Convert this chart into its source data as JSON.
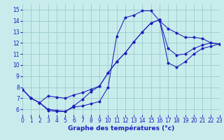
{
  "xlabel": "Graphe des températures (°c)",
  "xlim": [
    0,
    23
  ],
  "ylim": [
    5.5,
    15.5
  ],
  "xticks": [
    0,
    1,
    2,
    3,
    4,
    5,
    6,
    7,
    8,
    9,
    10,
    11,
    12,
    13,
    14,
    15,
    16,
    17,
    18,
    19,
    20,
    21,
    22,
    23
  ],
  "yticks": [
    6,
    7,
    8,
    9,
    10,
    11,
    12,
    13,
    14,
    15
  ],
  "bg": "#c8ecec",
  "grid_color": "#a0d0d0",
  "lc": "#1c1cbb",
  "line1_x": [
    0,
    1,
    2,
    3,
    4,
    5,
    6,
    7,
    8,
    9,
    10,
    11,
    12,
    13,
    14,
    15,
    16,
    17,
    18,
    19,
    20,
    21,
    22,
    23
  ],
  "line1_y": [
    7.8,
    7.0,
    6.6,
    5.9,
    5.8,
    5.8,
    6.2,
    6.3,
    6.5,
    6.7,
    8.0,
    12.6,
    14.3,
    14.5,
    14.9,
    14.9,
    14.0,
    13.3,
    12.9,
    12.5,
    12.5,
    12.4,
    12.0,
    11.9
  ],
  "line2_x": [
    0,
    1,
    2,
    3,
    4,
    5,
    6,
    7,
    8,
    9,
    10,
    11,
    12,
    13,
    14,
    15,
    16,
    17,
    18,
    19,
    20,
    21,
    22,
    23
  ],
  "line2_y": [
    7.8,
    7.0,
    6.6,
    7.2,
    7.1,
    7.0,
    7.3,
    7.5,
    7.8,
    8.1,
    9.3,
    10.3,
    11.1,
    12.1,
    13.0,
    13.8,
    14.1,
    11.5,
    10.9,
    11.0,
    11.5,
    11.8,
    12.0,
    11.9
  ],
  "line3_x": [
    0,
    1,
    2,
    3,
    4,
    5,
    6,
    7,
    8,
    9,
    10,
    11,
    12,
    13,
    14,
    15,
    16,
    17,
    18,
    19,
    20,
    21,
    22,
    23
  ],
  "line3_y": [
    7.8,
    7.0,
    6.6,
    6.0,
    5.9,
    5.8,
    6.3,
    6.9,
    7.6,
    8.1,
    9.3,
    10.3,
    11.1,
    12.1,
    13.0,
    13.8,
    14.1,
    10.2,
    9.8,
    10.3,
    11.0,
    11.5,
    11.7,
    11.9
  ]
}
